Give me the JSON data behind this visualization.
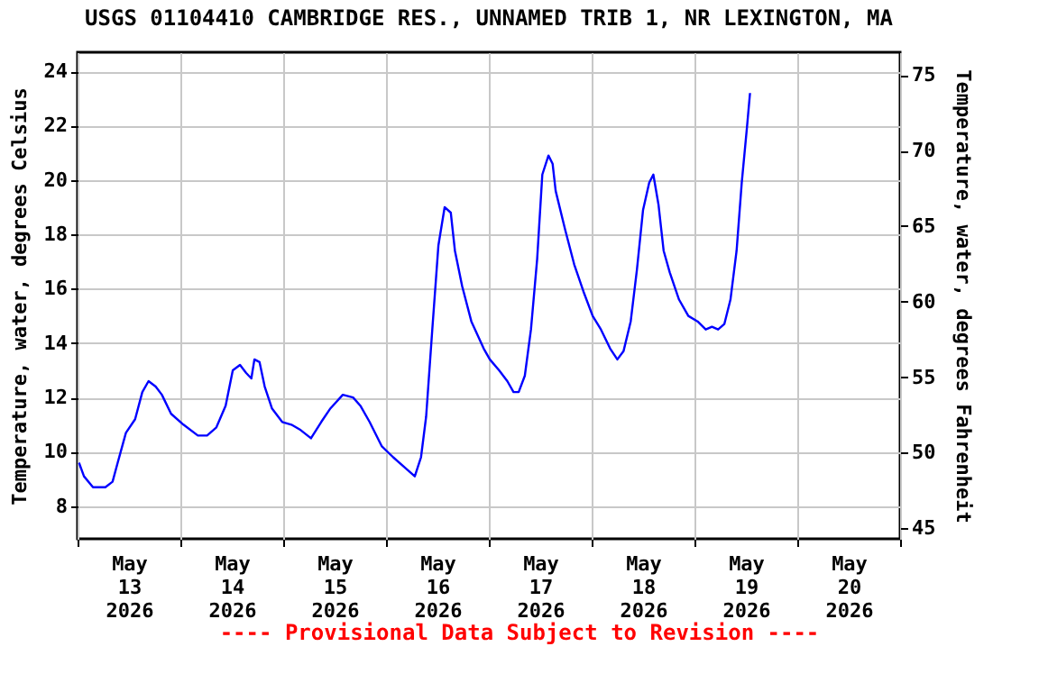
{
  "chart_data": {
    "type": "line",
    "title": "USGS 01104410 CAMBRIDGE RES., UNNAMED TRIB 1, NR LEXINGTON, MA",
    "ylabel": "Temperature, water, degrees Celsius",
    "y2label": "Temperature, water, degrees Fahrenheit",
    "annotations": [
      "---- Provisional Data Subject to Revision ----"
    ],
    "x": [
      "2026-05-13T00:20",
      "2026-05-13T01:30",
      "2026-05-13T03:36",
      "2026-05-13T06:29",
      "2026-05-13T08:10",
      "2026-05-13T09:22",
      "2026-05-13T11:17",
      "2026-05-13T13:26",
      "2026-05-13T15:07",
      "2026-05-13T16:34",
      "2026-05-13T18:14",
      "2026-05-13T19:41",
      "2026-05-13T21:50",
      "2026-05-14T00:43",
      "2026-05-14T04:05",
      "2026-05-14T06:14",
      "2026-05-14T08:24",
      "2026-05-14T10:34",
      "2026-05-14T12:14",
      "2026-05-14T13:55",
      "2026-05-14T15:22",
      "2026-05-14T16:34",
      "2026-05-14T17:17",
      "2026-05-14T18:29",
      "2026-05-14T19:41",
      "2026-05-14T21:22",
      "2026-05-14T23:46",
      "2026-05-15T01:55",
      "2026-05-15T04:05",
      "2026-05-15T06:29",
      "2026-05-15T08:53",
      "2026-05-15T11:02",
      "2026-05-15T13:55",
      "2026-05-15T16:19",
      "2026-05-15T18:00",
      "2026-05-15T20:10",
      "2026-05-15T23:02",
      "2026-05-16T01:41",
      "2026-05-16T05:17",
      "2026-05-16T06:43",
      "2026-05-16T08:10",
      "2026-05-16T09:22",
      "2026-05-16T10:48",
      "2026-05-16T12:14",
      "2026-05-16T13:41",
      "2026-05-16T15:07",
      "2026-05-16T16:05",
      "2026-05-16T17:46",
      "2026-05-16T19:55",
      "2026-05-16T22:48",
      "2026-05-17T00:14",
      "2026-05-17T02:24",
      "2026-05-17T04:19",
      "2026-05-17T05:46",
      "2026-05-17T06:58",
      "2026-05-17T08:24",
      "2026-05-17T09:50",
      "2026-05-17T11:17",
      "2026-05-17T12:29",
      "2026-05-17T13:55",
      "2026-05-17T14:53",
      "2026-05-17T15:36",
      "2026-05-17T17:46",
      "2026-05-17T19:55",
      "2026-05-17T22:05",
      "2026-05-18T00:14",
      "2026-05-18T02:10",
      "2026-05-18T04:19",
      "2026-05-18T06:00",
      "2026-05-18T07:26",
      "2026-05-18T09:07",
      "2026-05-18T10:34",
      "2026-05-18T12:00",
      "2026-05-18T13:26",
      "2026-05-18T14:24",
      "2026-05-18T15:36",
      "2026-05-18T16:48",
      "2026-05-18T18:14",
      "2026-05-18T20:24",
      "2026-05-18T22:34",
      "2026-05-19T00:43",
      "2026-05-19T02:38",
      "2026-05-19T04:05",
      "2026-05-19T05:31",
      "2026-05-19T06:58",
      "2026-05-19T08:24",
      "2026-05-19T09:50",
      "2026-05-19T11:02",
      "2026-05-19T12:14",
      "2026-05-19T12:58"
    ],
    "series": [
      {
        "color": "#0000ff",
        "values": [
          9.6,
          9.1,
          8.7,
          8.7,
          8.9,
          9.6,
          10.7,
          11.2,
          12.2,
          12.6,
          12.4,
          12.1,
          11.4,
          11.0,
          10.6,
          10.6,
          10.9,
          11.7,
          13.0,
          13.2,
          12.9,
          12.7,
          13.4,
          13.3,
          12.4,
          11.6,
          11.1,
          11.0,
          10.8,
          10.5,
          11.1,
          11.6,
          12.1,
          12.0,
          11.7,
          11.1,
          10.2,
          9.8,
          9.3,
          9.1,
          9.8,
          11.3,
          14.5,
          17.6,
          19.0,
          18.8,
          17.4,
          16.1,
          14.8,
          13.8,
          13.4,
          13.0,
          12.6,
          12.2,
          12.2,
          12.8,
          14.5,
          17.1,
          20.2,
          20.9,
          20.6,
          19.6,
          18.2,
          16.9,
          15.9,
          15.0,
          14.5,
          13.8,
          13.4,
          13.7,
          14.8,
          16.7,
          18.9,
          19.9,
          20.2,
          19.1,
          17.4,
          16.6,
          15.6,
          15.0,
          14.8,
          14.5,
          14.6,
          14.5,
          14.7,
          15.6,
          17.4,
          19.9,
          21.9,
          23.2
        ]
      }
    ],
    "xlim": [
      "2026-05-13",
      "2026-05-21"
    ],
    "xticks": [
      {
        "value": "2026-05-13",
        "label": null
      },
      {
        "value": "2026-05-13T12:00",
        "label": "May 13 2026"
      },
      {
        "value": "2026-05-14",
        "label": null
      },
      {
        "value": "2026-05-14T12:00",
        "label": "May 14 2026"
      },
      {
        "value": "2026-05-15",
        "label": null
      },
      {
        "value": "2026-05-15T12:00",
        "label": "May 15 2026"
      },
      {
        "value": "2026-05-16",
        "label": null
      },
      {
        "value": "2026-05-16T12:00",
        "label": "May 16 2026"
      },
      {
        "value": "2026-05-17",
        "label": null
      },
      {
        "value": "2026-05-17T12:00",
        "label": "May 17 2026"
      },
      {
        "value": "2026-05-18",
        "label": null
      },
      {
        "value": "2026-05-18T12:00",
        "label": "May 18 2026"
      },
      {
        "value": "2026-05-19",
        "label": null
      },
      {
        "value": "2026-05-19T12:00",
        "label": "May 19 2026"
      },
      {
        "value": "2026-05-20",
        "label": null
      },
      {
        "value": "2026-05-20T12:00",
        "label": "May 20 2026"
      },
      {
        "value": "2026-05-21",
        "label": null
      }
    ],
    "ylim": [
      6.8,
      24.7
    ],
    "yticks": [
      8,
      10,
      12,
      14,
      16,
      18,
      20,
      22,
      24
    ],
    "y2lim": [
      44.3,
      76.5
    ],
    "y2ticks": [
      45,
      50,
      55,
      60,
      65,
      70,
      75
    ],
    "grid": true,
    "marker": "none",
    "line_style": "solid"
  }
}
